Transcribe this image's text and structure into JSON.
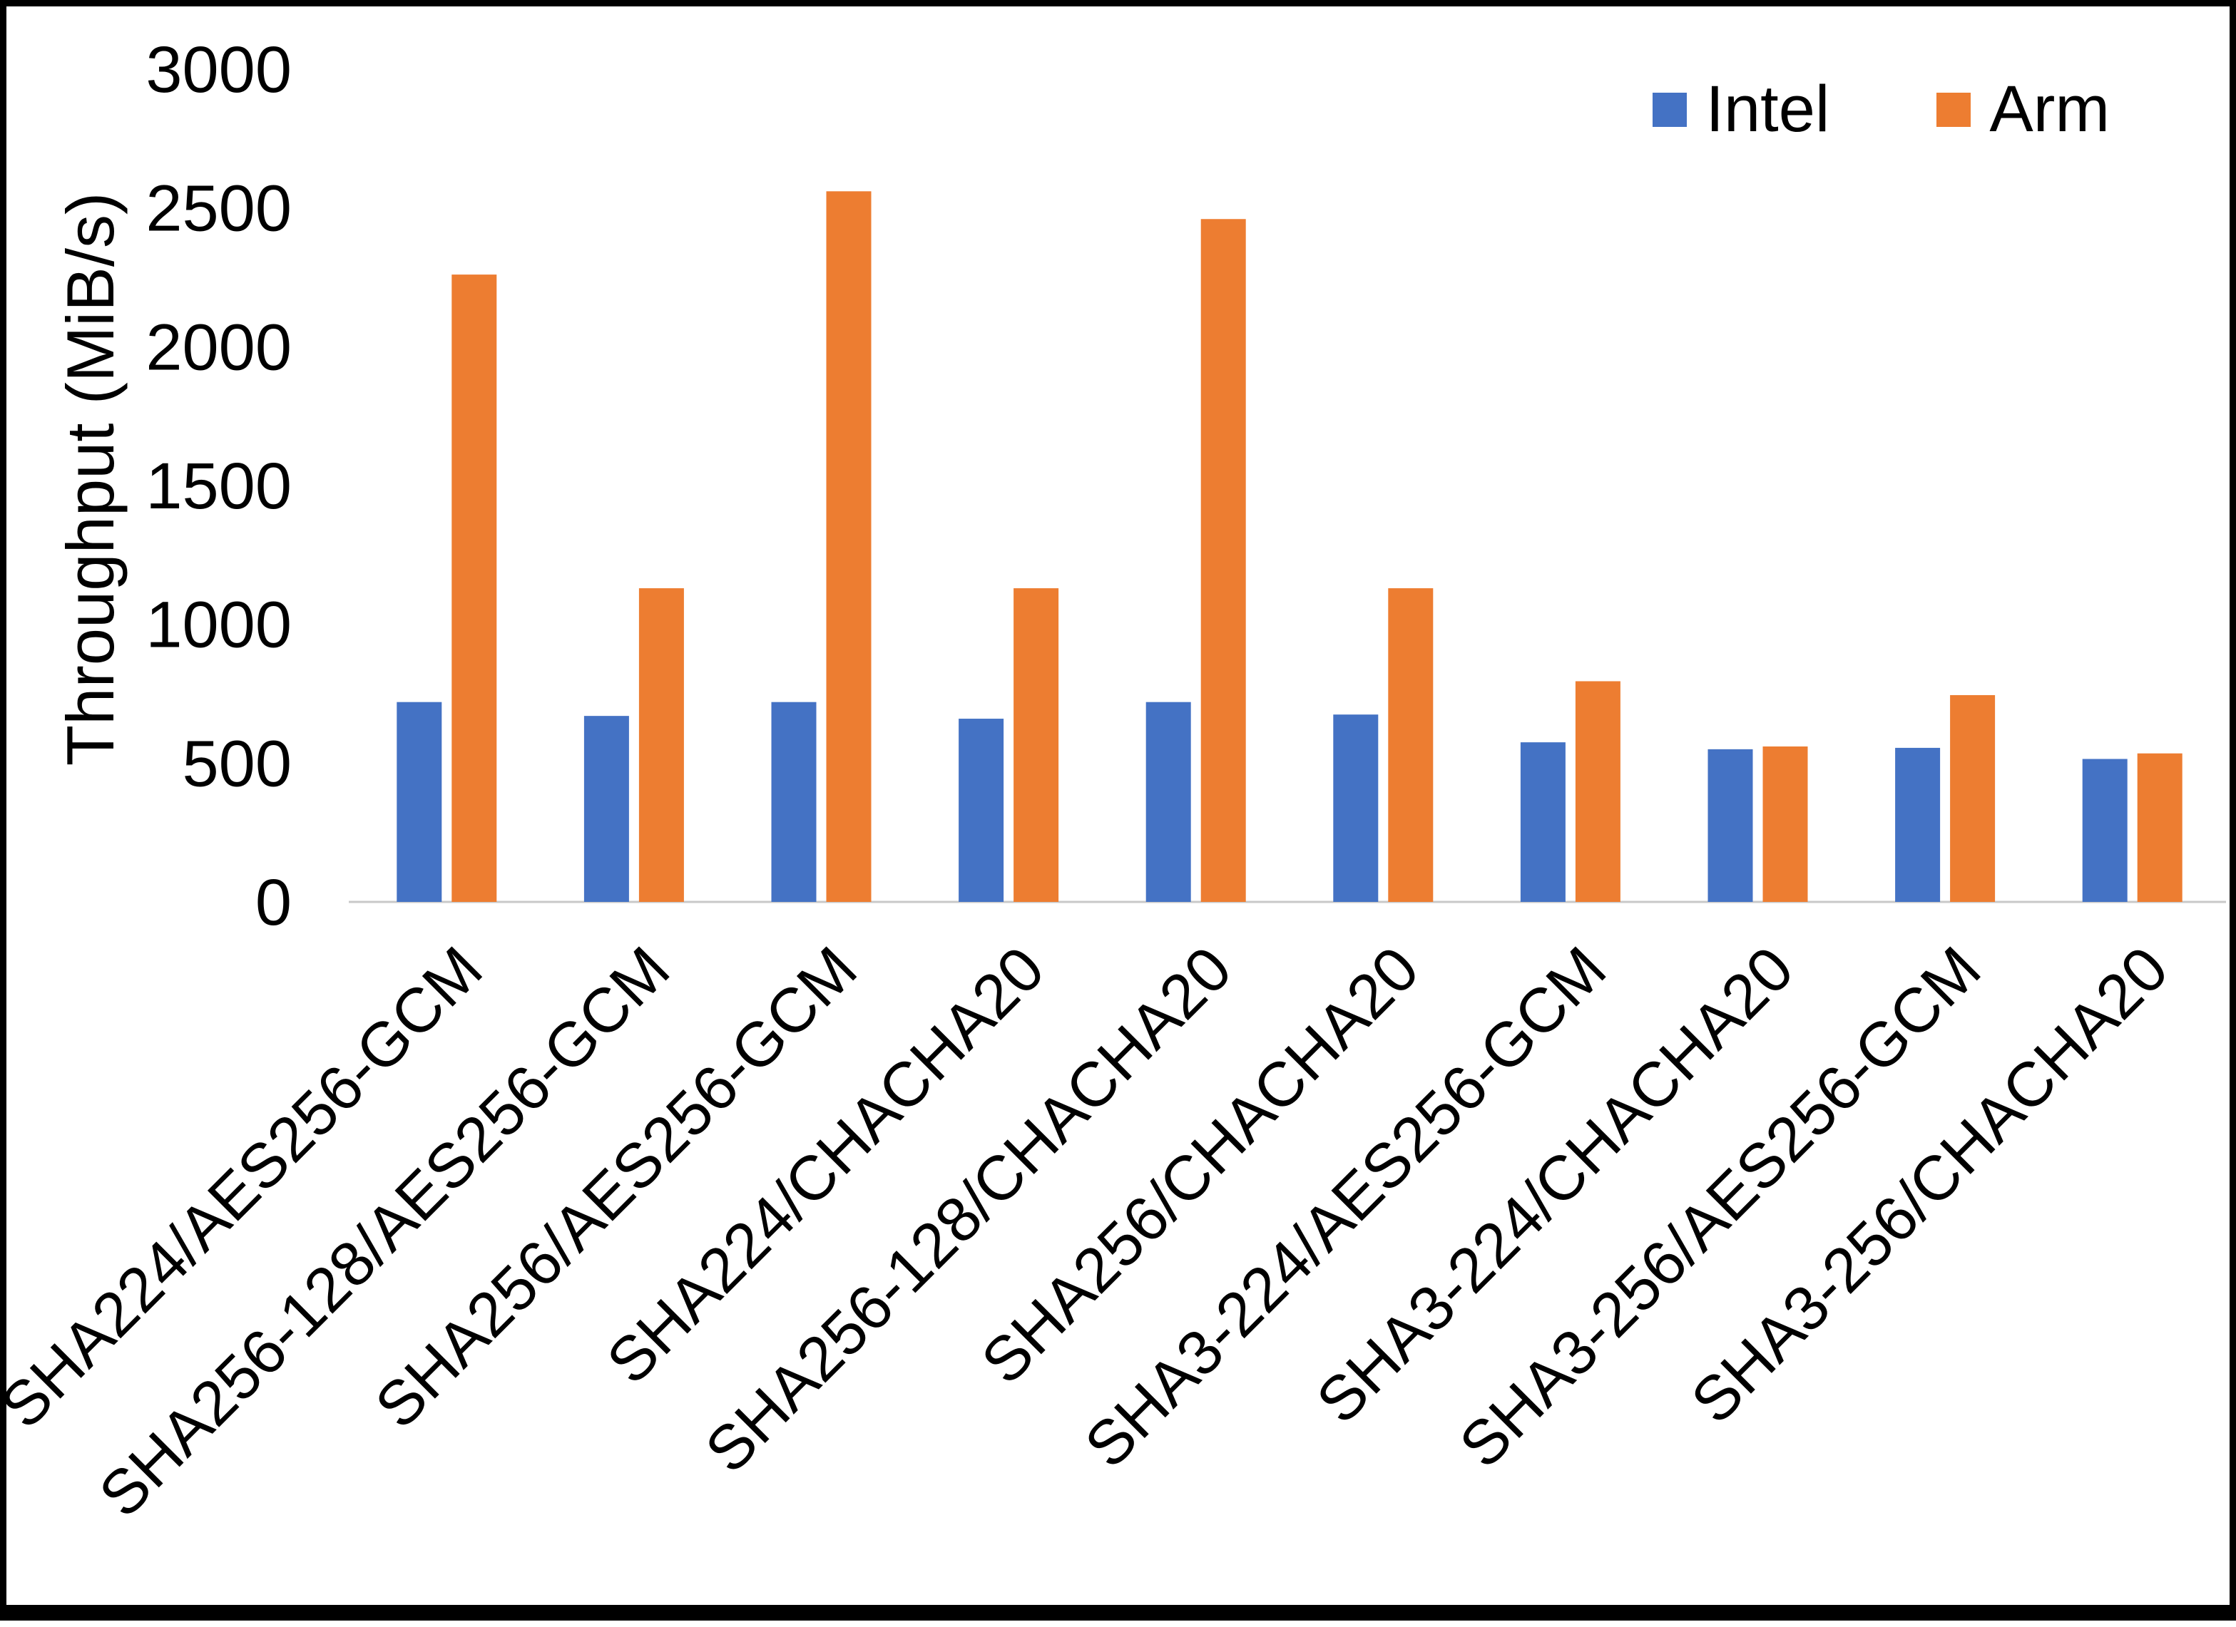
{
  "chart_data": {
    "type": "bar",
    "title": "",
    "xlabel": "",
    "ylabel": "Throughput (MiB/s)",
    "ylim": [
      0,
      3000
    ],
    "yticks": [
      0,
      500,
      1000,
      1500,
      2000,
      2500,
      3000
    ],
    "grid": false,
    "legend_position": "top-right",
    "axis_line_color": "#c9c9c9",
    "categories": [
      "SHA224/AES256-GCM",
      "SHA256-128/AES256-GCM",
      "SHA256/AES256-GCM",
      "SHA224/CHACHA20",
      "SHA256-128/CHACHA20",
      "SHA256/CHACHA20",
      "SHA3-224/AES256-GCM",
      "SHA3-224/CHACHA20",
      "SHA3-256/AES256-GCM",
      "SHA3-256/CHACHA20"
    ],
    "series": [
      {
        "name": "Intel",
        "color": "#4472C4",
        "values": [
          720,
          670,
          720,
          660,
          720,
          675,
          575,
          550,
          555,
          515
        ]
      },
      {
        "name": "Arm",
        "color": "#ED7D31",
        "values": [
          2260,
          1130,
          2560,
          1130,
          2460,
          1130,
          795,
          560,
          745,
          535
        ]
      }
    ]
  }
}
